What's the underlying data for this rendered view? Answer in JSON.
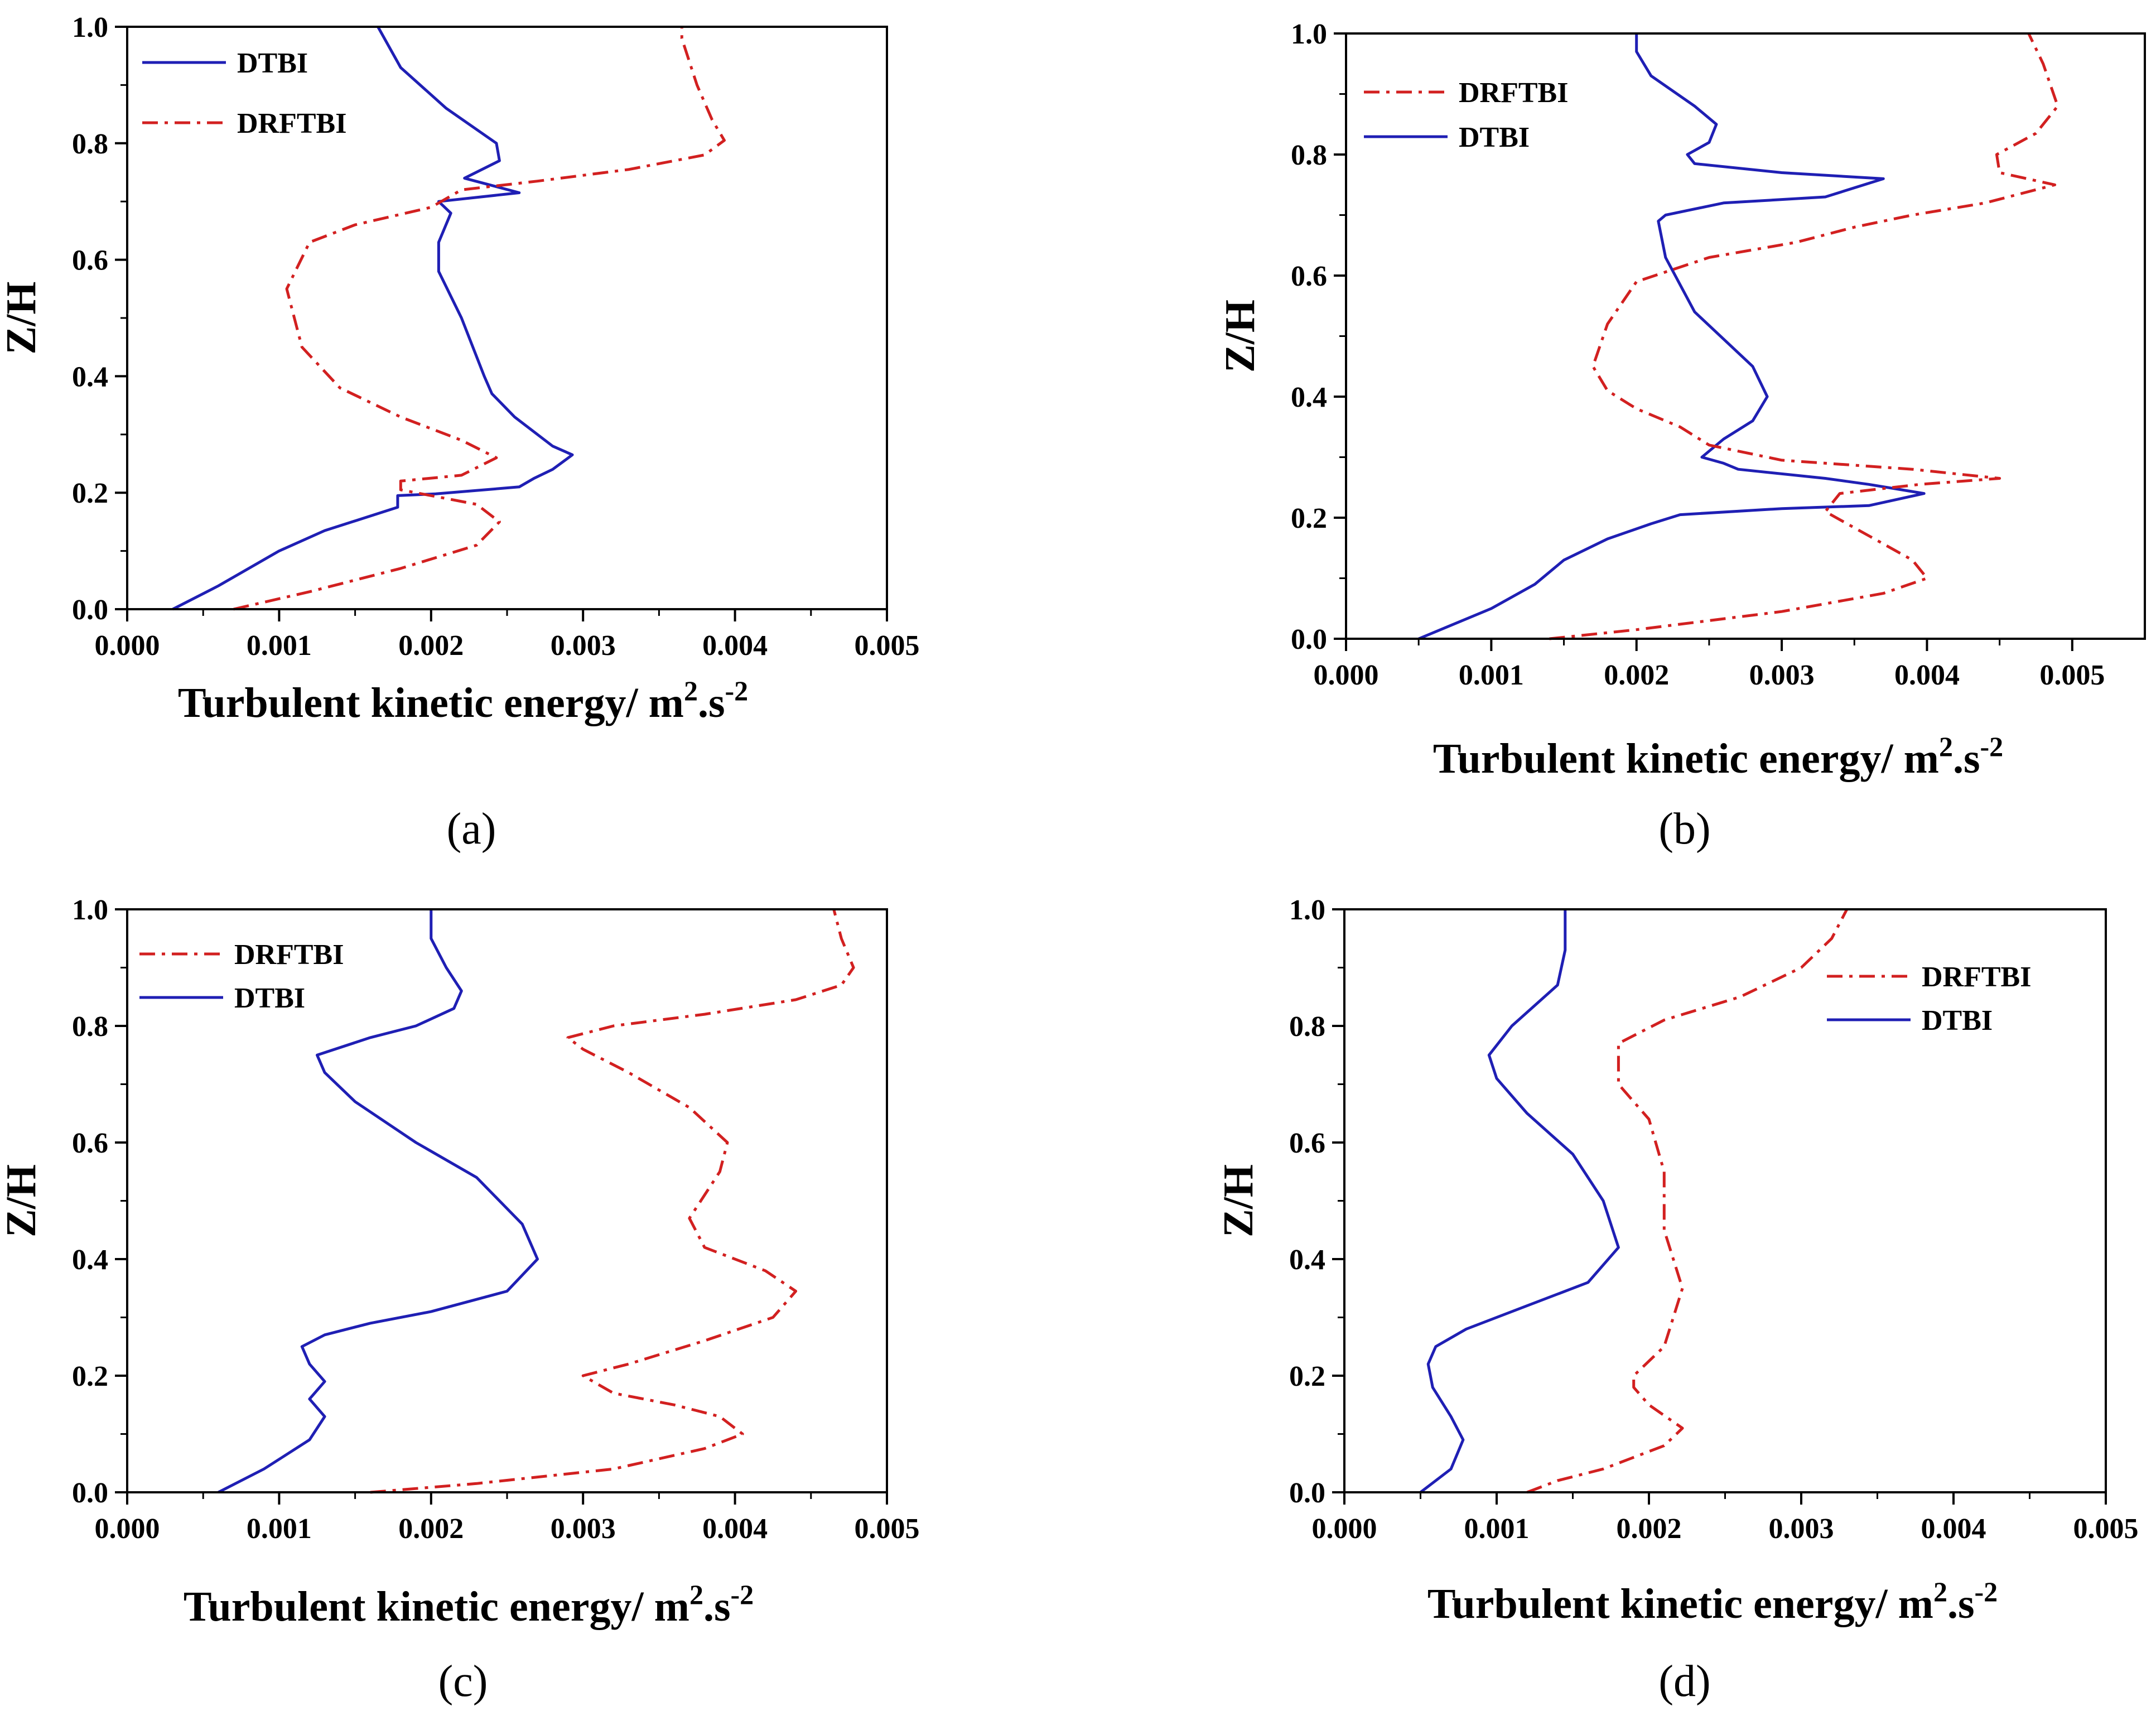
{
  "figure": {
    "panel_labels": [
      "(a)",
      "(b)",
      "(c)",
      "(d)"
    ]
  },
  "colors": {
    "dtbi": "#1f1fb4",
    "drftbi": "#d22020",
    "axis": "#000000"
  },
  "chart_data": [
    {
      "id": "a",
      "type": "line",
      "panel_label": "(a)",
      "xlabel": "Turbulent kinetic energy/ m",
      "xlabel_sup1": "2",
      "xlabel_mid": ".s",
      "xlabel_sup2": "-2",
      "ylabel": "Z/H",
      "xlim": [
        0,
        0.005
      ],
      "ylim": [
        0,
        1.0
      ],
      "xticks": [
        "0.000",
        "0.001",
        "0.002",
        "0.003",
        "0.004",
        "0.005"
      ],
      "yticks": [
        "0.0",
        "0.2",
        "0.4",
        "0.6",
        "0.8",
        "1.0"
      ],
      "legend_order": [
        "DTBI",
        "DRFTBI"
      ],
      "series": [
        {
          "name": "DTBI",
          "style": "solid",
          "points": [
            [
              0.0003,
              0.0
            ],
            [
              0.0006,
              0.04
            ],
            [
              0.001,
              0.1
            ],
            [
              0.0013,
              0.135
            ],
            [
              0.0016,
              0.16
            ],
            [
              0.00178,
              0.175
            ],
            [
              0.00178,
              0.195
            ],
            [
              0.00203,
              0.198
            ],
            [
              0.00258,
              0.21
            ],
            [
              0.00268,
              0.225
            ],
            [
              0.0028,
              0.24
            ],
            [
              0.00293,
              0.265
            ],
            [
              0.0028,
              0.28
            ],
            [
              0.00255,
              0.33
            ],
            [
              0.0024,
              0.37
            ],
            [
              0.00235,
              0.4
            ],
            [
              0.0022,
              0.5
            ],
            [
              0.00205,
              0.58
            ],
            [
              0.00205,
              0.63
            ],
            [
              0.00213,
              0.68
            ],
            [
              0.00205,
              0.7
            ],
            [
              0.00258,
              0.715
            ],
            [
              0.00222,
              0.74
            ],
            [
              0.00245,
              0.77
            ],
            [
              0.00243,
              0.8
            ],
            [
              0.0021,
              0.86
            ],
            [
              0.0018,
              0.93
            ],
            [
              0.00165,
              1.0
            ]
          ]
        },
        {
          "name": "DRFTBI",
          "style": "dashdot",
          "points": [
            [
              0.0007,
              0.0
            ],
            [
              0.0012,
              0.03
            ],
            [
              0.0018,
              0.07
            ],
            [
              0.0023,
              0.11
            ],
            [
              0.00245,
              0.15
            ],
            [
              0.0023,
              0.18
            ],
            [
              0.0018,
              0.205
            ],
            [
              0.0018,
              0.22
            ],
            [
              0.0022,
              0.23
            ],
            [
              0.00243,
              0.26
            ],
            [
              0.0022,
              0.29
            ],
            [
              0.0018,
              0.33
            ],
            [
              0.0014,
              0.38
            ],
            [
              0.00115,
              0.45
            ],
            [
              0.00105,
              0.55
            ],
            [
              0.0012,
              0.63
            ],
            [
              0.0015,
              0.66
            ],
            [
              0.002,
              0.69
            ],
            [
              0.0022,
              0.72
            ],
            [
              0.0027,
              0.735
            ],
            [
              0.0033,
              0.755
            ],
            [
              0.0038,
              0.78
            ],
            [
              0.00393,
              0.805
            ],
            [
              0.00385,
              0.84
            ],
            [
              0.00375,
              0.9
            ],
            [
              0.00365,
              0.98
            ],
            [
              0.00365,
              1.0
            ]
          ]
        }
      ]
    },
    {
      "id": "b",
      "type": "line",
      "panel_label": "(b)",
      "xlabel": "Turbulent kinetic energy/ m",
      "xlabel_sup1": "2",
      "xlabel_mid": ".s",
      "xlabel_sup2": "-2",
      "ylabel": "Z/H",
      "xlim": [
        0,
        0.0055
      ],
      "ylim": [
        0,
        1.0
      ],
      "xticks": [
        "0.000",
        "0.001",
        "0.002",
        "0.003",
        "0.004",
        "0.005"
      ],
      "yticks": [
        "0.0",
        "0.2",
        "0.4",
        "0.6",
        "0.8",
        "1.0"
      ],
      "legend_order": [
        "DRFTBI",
        "DTBI"
      ],
      "series": [
        {
          "name": "DTBI",
          "style": "solid",
          "points": [
            [
              0.0005,
              0.0
            ],
            [
              0.0007,
              0.02
            ],
            [
              0.001,
              0.05
            ],
            [
              0.0013,
              0.09
            ],
            [
              0.0015,
              0.13
            ],
            [
              0.0018,
              0.165
            ],
            [
              0.0021,
              0.19
            ],
            [
              0.0023,
              0.205
            ],
            [
              0.003,
              0.215
            ],
            [
              0.0036,
              0.22
            ],
            [
              0.00398,
              0.24
            ],
            [
              0.0036,
              0.255
            ],
            [
              0.0033,
              0.265
            ],
            [
              0.0027,
              0.28
            ],
            [
              0.0026,
              0.29
            ],
            [
              0.00245,
              0.3
            ],
            [
              0.0026,
              0.33
            ],
            [
              0.0028,
              0.36
            ],
            [
              0.0029,
              0.4
            ],
            [
              0.0028,
              0.45
            ],
            [
              0.0024,
              0.54
            ],
            [
              0.0022,
              0.63
            ],
            [
              0.00215,
              0.69
            ],
            [
              0.0022,
              0.7
            ],
            [
              0.0026,
              0.72
            ],
            [
              0.0033,
              0.73
            ],
            [
              0.0037,
              0.76
            ],
            [
              0.003,
              0.77
            ],
            [
              0.0024,
              0.785
            ],
            [
              0.00235,
              0.8
            ],
            [
              0.0025,
              0.82
            ],
            [
              0.00255,
              0.85
            ],
            [
              0.0024,
              0.88
            ],
            [
              0.0021,
              0.93
            ],
            [
              0.002,
              0.97
            ],
            [
              0.002,
              1.0
            ]
          ]
        },
        {
          "name": "DRFTBI",
          "style": "dashdot",
          "points": [
            [
              0.0014,
              0.0
            ],
            [
              0.002,
              0.015
            ],
            [
              0.003,
              0.045
            ],
            [
              0.0037,
              0.075
            ],
            [
              0.004,
              0.1
            ],
            [
              0.0039,
              0.13
            ],
            [
              0.0036,
              0.17
            ],
            [
              0.0033,
              0.21
            ],
            [
              0.0034,
              0.24
            ],
            [
              0.00395,
              0.255
            ],
            [
              0.0045,
              0.265
            ],
            [
              0.0039,
              0.28
            ],
            [
              0.003,
              0.295
            ],
            [
              0.0025,
              0.32
            ],
            [
              0.0023,
              0.35
            ],
            [
              0.002,
              0.38
            ],
            [
              0.0018,
              0.41
            ],
            [
              0.0017,
              0.45
            ],
            [
              0.0018,
              0.52
            ],
            [
              0.002,
              0.59
            ],
            [
              0.0025,
              0.63
            ],
            [
              0.0031,
              0.655
            ],
            [
              0.0035,
              0.68
            ],
            [
              0.0039,
              0.7
            ],
            [
              0.0044,
              0.72
            ],
            [
              0.00488,
              0.75
            ],
            [
              0.0045,
              0.77
            ],
            [
              0.00448,
              0.8
            ],
            [
              0.00475,
              0.835
            ],
            [
              0.0049,
              0.88
            ],
            [
              0.0048,
              0.95
            ],
            [
              0.0047,
              1.0
            ]
          ]
        }
      ]
    },
    {
      "id": "c",
      "type": "line",
      "panel_label": "(c)",
      "xlabel": "Turbulent kinetic energy/ m",
      "xlabel_sup1": "2",
      "xlabel_mid": ".s",
      "xlabel_sup2": "-2",
      "ylabel": "Z/H",
      "xlim": [
        0,
        0.005
      ],
      "ylim": [
        0,
        1.0
      ],
      "xticks": [
        "0.000",
        "0.001",
        "0.002",
        "0.003",
        "0.004",
        "0.005"
      ],
      "yticks": [
        "0.0",
        "0.2",
        "0.4",
        "0.6",
        "0.8",
        "1.0"
      ],
      "legend_order": [
        "DRFTBI",
        "DTBI"
      ],
      "series": [
        {
          "name": "DTBI",
          "style": "solid",
          "points": [
            [
              0.0006,
              0.0
            ],
            [
              0.0009,
              0.04
            ],
            [
              0.0012,
              0.09
            ],
            [
              0.0013,
              0.13
            ],
            [
              0.0012,
              0.16
            ],
            [
              0.0013,
              0.19
            ],
            [
              0.0012,
              0.22
            ],
            [
              0.00115,
              0.25
            ],
            [
              0.0013,
              0.27
            ],
            [
              0.0016,
              0.29
            ],
            [
              0.002,
              0.31
            ],
            [
              0.0025,
              0.345
            ],
            [
              0.0027,
              0.4
            ],
            [
              0.0026,
              0.46
            ],
            [
              0.0023,
              0.54
            ],
            [
              0.0019,
              0.6
            ],
            [
              0.0015,
              0.67
            ],
            [
              0.0013,
              0.72
            ],
            [
              0.00125,
              0.75
            ],
            [
              0.0016,
              0.78
            ],
            [
              0.0019,
              0.8
            ],
            [
              0.00215,
              0.83
            ],
            [
              0.0022,
              0.86
            ],
            [
              0.0021,
              0.9
            ],
            [
              0.002,
              0.95
            ],
            [
              0.002,
              1.0
            ]
          ]
        },
        {
          "name": "DRFTBI",
          "style": "dashdot",
          "points": [
            [
              0.0016,
              0.0
            ],
            [
              0.0023,
              0.015
            ],
            [
              0.0032,
              0.04
            ],
            [
              0.0038,
              0.075
            ],
            [
              0.00405,
              0.1
            ],
            [
              0.0039,
              0.13
            ],
            [
              0.0036,
              0.15
            ],
            [
              0.0032,
              0.17
            ],
            [
              0.003,
              0.2
            ],
            [
              0.0033,
              0.22
            ],
            [
              0.0038,
              0.26
            ],
            [
              0.00425,
              0.3
            ],
            [
              0.0044,
              0.345
            ],
            [
              0.0042,
              0.38
            ],
            [
              0.0038,
              0.42
            ],
            [
              0.0037,
              0.47
            ],
            [
              0.0039,
              0.55
            ],
            [
              0.00395,
              0.6
            ],
            [
              0.0037,
              0.66
            ],
            [
              0.0033,
              0.72
            ],
            [
              0.003,
              0.76
            ],
            [
              0.0029,
              0.78
            ],
            [
              0.0032,
              0.8
            ],
            [
              0.0038,
              0.82
            ],
            [
              0.0044,
              0.845
            ],
            [
              0.0047,
              0.87
            ],
            [
              0.00478,
              0.9
            ],
            [
              0.0047,
              0.95
            ],
            [
              0.00465,
              1.0
            ]
          ]
        }
      ]
    },
    {
      "id": "d",
      "type": "line",
      "panel_label": "(d)",
      "xlabel": "Turbulent kinetic energy/ m",
      "xlabel_sup1": "2",
      "xlabel_mid": ".s",
      "xlabel_sup2": "-2",
      "ylabel": "Z/H",
      "xlim": [
        0,
        0.005
      ],
      "ylim": [
        0,
        1.0
      ],
      "xticks": [
        "0.000",
        "0.001",
        "0.002",
        "0.003",
        "0.004",
        "0.005"
      ],
      "yticks": [
        "0.0",
        "0.2",
        "0.4",
        "0.6",
        "0.8",
        "1.0"
      ],
      "legend_order": [
        "DRFTBI",
        "DTBI"
      ],
      "series": [
        {
          "name": "DTBI",
          "style": "solid",
          "points": [
            [
              0.0005,
              0.0
            ],
            [
              0.0007,
              0.04
            ],
            [
              0.00078,
              0.09
            ],
            [
              0.0007,
              0.13
            ],
            [
              0.00058,
              0.18
            ],
            [
              0.00055,
              0.22
            ],
            [
              0.0006,
              0.25
            ],
            [
              0.0008,
              0.28
            ],
            [
              0.0012,
              0.32
            ],
            [
              0.0016,
              0.36
            ],
            [
              0.0018,
              0.42
            ],
            [
              0.0017,
              0.5
            ],
            [
              0.0015,
              0.58
            ],
            [
              0.0012,
              0.65
            ],
            [
              0.001,
              0.71
            ],
            [
              0.00095,
              0.75
            ],
            [
              0.0011,
              0.8
            ],
            [
              0.0014,
              0.87
            ],
            [
              0.00145,
              0.93
            ],
            [
              0.00145,
              1.0
            ]
          ]
        },
        {
          "name": "DRFTBI",
          "style": "dashdot",
          "points": [
            [
              0.0012,
              0.0
            ],
            [
              0.0014,
              0.02
            ],
            [
              0.0017,
              0.04
            ],
            [
              0.0021,
              0.08
            ],
            [
              0.00222,
              0.11
            ],
            [
              0.002,
              0.15
            ],
            [
              0.0019,
              0.18
            ],
            [
              0.0019,
              0.2
            ],
            [
              0.0021,
              0.25
            ],
            [
              0.00222,
              0.35
            ],
            [
              0.0021,
              0.45
            ],
            [
              0.0021,
              0.55
            ],
            [
              0.002,
              0.64
            ],
            [
              0.0018,
              0.7
            ],
            [
              0.0018,
              0.77
            ],
            [
              0.0021,
              0.81
            ],
            [
              0.0026,
              0.85
            ],
            [
              0.003,
              0.9
            ],
            [
              0.0032,
              0.95
            ],
            [
              0.0033,
              1.0
            ]
          ]
        }
      ]
    }
  ]
}
